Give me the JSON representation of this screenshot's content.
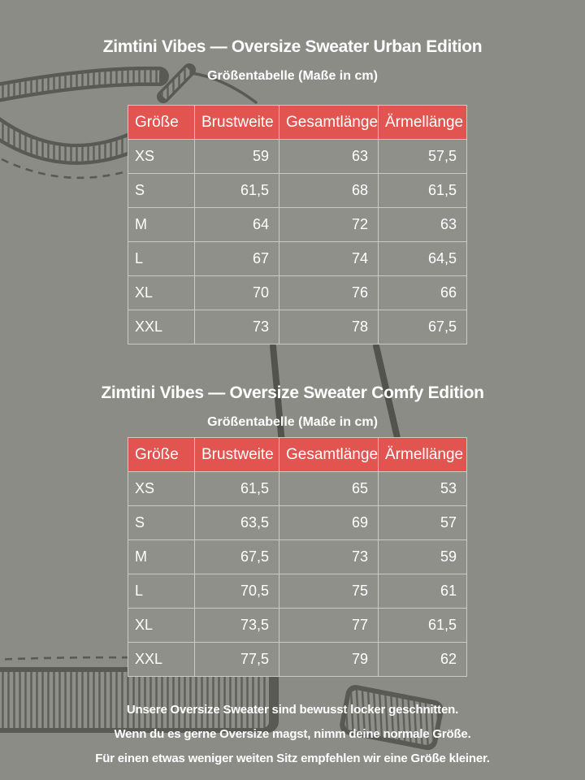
{
  "colors": {
    "background": "#8c8c86",
    "table_cell_bg": "#90908a",
    "header_bg": "#e25450",
    "table_border": "#cbcbc6",
    "text": "#ffffff",
    "artwork_line": "#5a5a54"
  },
  "artwork": {
    "name": "oversize-sweater-line-art"
  },
  "sections": [
    {
      "title": "Zimtini Vibes — Oversize Sweater Urban Edition",
      "subtitle": "Größentabelle (Maße in cm)",
      "table": {
        "columns": [
          "Größe",
          "Brustweite",
          "Gesamtlänge",
          "Ärmellänge"
        ],
        "rows": [
          [
            "XS",
            "59",
            "63",
            "57,5"
          ],
          [
            "S",
            "61,5",
            "68",
            "61,5"
          ],
          [
            "M",
            "64",
            "72",
            "63"
          ],
          [
            "L",
            "67",
            "74",
            "64,5"
          ],
          [
            "XL",
            "70",
            "76",
            "66"
          ],
          [
            "XXL",
            "73",
            "78",
            "67,5"
          ]
        ]
      }
    },
    {
      "title": "Zimtini Vibes — Oversize Sweater Comfy Edition",
      "subtitle": "Größentabelle (Maße in cm)",
      "table": {
        "columns": [
          "Größe",
          "Brustweite",
          "Gesamtlänge",
          "Ärmellänge"
        ],
        "rows": [
          [
            "XS",
            "61,5",
            "65",
            "53"
          ],
          [
            "S",
            "63,5",
            "69",
            "57"
          ],
          [
            "M",
            "67,5",
            "73",
            "59"
          ],
          [
            "L",
            "70,5",
            "75",
            "61"
          ],
          [
            "XL",
            "73,5",
            "77",
            "61,5"
          ],
          [
            "XXL",
            "77,5",
            "79",
            "62"
          ]
        ]
      }
    }
  ],
  "footer": {
    "lines": [
      "Unsere Oversize Sweater sind bewusst locker geschnitten.",
      "Wenn du es gerne Oversize magst, nimm deine normale Größe.",
      "Für einen etwas weniger weiten Sitz empfehlen wir eine Größe kleiner."
    ]
  }
}
